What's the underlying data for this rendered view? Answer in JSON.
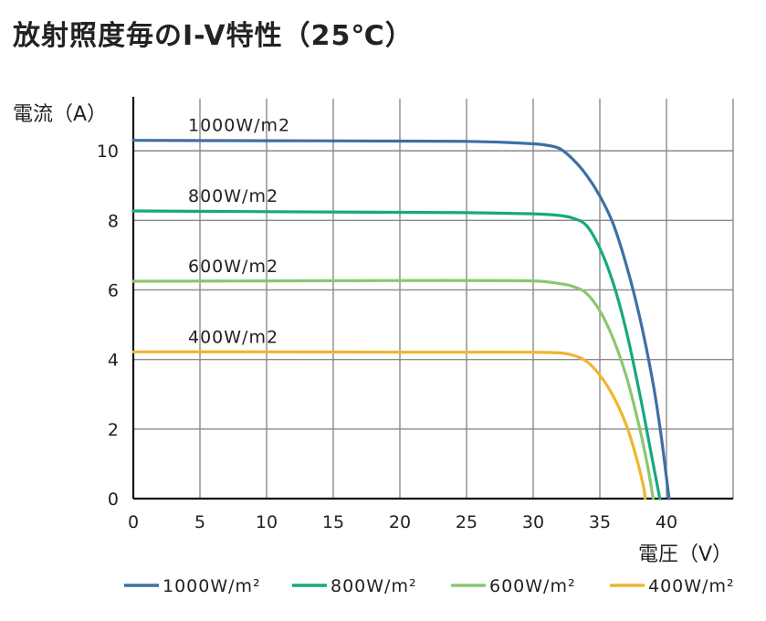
{
  "page": {
    "title": "放射照度毎のI-V特性（25℃）"
  },
  "chart_data": {
    "type": "line",
    "title": "放射照度毎のI-V特性（25℃）",
    "xlabel": "電圧（V）",
    "ylabel": "電流（A）",
    "xlim": [
      0,
      45
    ],
    "ylim": [
      0,
      11.5
    ],
    "x_ticks": [
      "0",
      "5",
      "10",
      "15",
      "20",
      "25",
      "30",
      "35",
      "40"
    ],
    "y_ticks": [
      "0",
      "2",
      "4",
      "6",
      "8",
      "10"
    ],
    "grid": true,
    "legend_position": "bottom",
    "series": [
      {
        "name": "1000W/m²",
        "label": "1000W/m2",
        "color": "#3d6fa6",
        "points": [
          [
            0,
            10.3
          ],
          [
            10,
            10.29
          ],
          [
            20,
            10.28
          ],
          [
            25,
            10.27
          ],
          [
            28,
            10.24
          ],
          [
            30,
            10.2
          ],
          [
            31,
            10.16
          ],
          [
            32,
            10.06
          ],
          [
            33,
            9.75
          ],
          [
            34,
            9.3
          ],
          [
            35,
            8.7
          ],
          [
            36,
            7.9
          ],
          [
            37,
            6.7
          ],
          [
            38,
            5.2
          ],
          [
            39,
            3.3
          ],
          [
            39.6,
            1.8
          ],
          [
            40,
            0.6
          ],
          [
            40.2,
            0
          ]
        ]
      },
      {
        "name": "800W/m²",
        "label": "800W/m2",
        "color": "#17a87e",
        "points": [
          [
            0,
            8.27
          ],
          [
            10,
            8.25
          ],
          [
            20,
            8.23
          ],
          [
            25,
            8.22
          ],
          [
            30,
            8.19
          ],
          [
            32,
            8.14
          ],
          [
            33,
            8.06
          ],
          [
            34,
            7.85
          ],
          [
            35,
            7.2
          ],
          [
            36,
            6.2
          ],
          [
            37,
            4.8
          ],
          [
            38,
            3.0
          ],
          [
            38.8,
            1.4
          ],
          [
            39.3,
            0.4
          ],
          [
            39.5,
            0
          ]
        ]
      },
      {
        "name": "600W/m²",
        "label": "600W/m2",
        "color": "#8cc66f",
        "points": [
          [
            0,
            6.25
          ],
          [
            10,
            6.26
          ],
          [
            20,
            6.27
          ],
          [
            25,
            6.27
          ],
          [
            30,
            6.26
          ],
          [
            32,
            6.18
          ],
          [
            33,
            6.1
          ],
          [
            34,
            5.9
          ],
          [
            35,
            5.4
          ],
          [
            36,
            4.6
          ],
          [
            37,
            3.5
          ],
          [
            38,
            2.0
          ],
          [
            38.6,
            0.9
          ],
          [
            39,
            0
          ]
        ]
      },
      {
        "name": "400W/m²",
        "label": "400W/m2",
        "color": "#efb52f",
        "points": [
          [
            0,
            4.22
          ],
          [
            10,
            4.22
          ],
          [
            20,
            4.21
          ],
          [
            25,
            4.21
          ],
          [
            30,
            4.21
          ],
          [
            32,
            4.19
          ],
          [
            33,
            4.12
          ],
          [
            34,
            3.95
          ],
          [
            35,
            3.55
          ],
          [
            36,
            2.95
          ],
          [
            37,
            2.1
          ],
          [
            37.8,
            1.1
          ],
          [
            38.3,
            0.3
          ],
          [
            38.4,
            0
          ]
        ]
      }
    ]
  }
}
